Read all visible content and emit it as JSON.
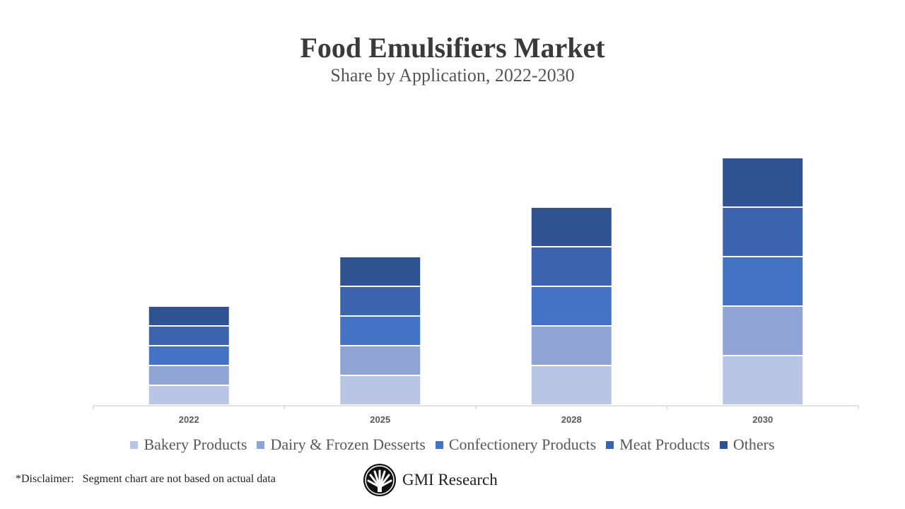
{
  "chart_data": {
    "type": "bar",
    "stacked": true,
    "title": "Food Emulsifiers Market",
    "subtitle": "Share by Application, 2022-2030",
    "categories": [
      "2022",
      "2025",
      "2028",
      "2030"
    ],
    "series": [
      {
        "name": "Bakery Products",
        "color": "#BAC5E3",
        "values": [
          2,
          3,
          4,
          5
        ]
      },
      {
        "name": "Dairy & Frozen Desserts",
        "color": "#8FA4D4",
        "values": [
          2,
          3,
          4,
          5
        ]
      },
      {
        "name": "Confectionery Products",
        "color": "#4472C4",
        "values": [
          2,
          3,
          4,
          5
        ]
      },
      {
        "name": "Meat Products",
        "color": "#3A64AC",
        "values": [
          2,
          3,
          4,
          5
        ]
      },
      {
        "name": "Others",
        "color": "#2F5291",
        "values": [
          2,
          3,
          4,
          5
        ]
      }
    ],
    "ylim": [
      0,
      26
    ],
    "grid": false,
    "y_axis_labels": false,
    "legend": "bottom"
  },
  "footer": {
    "disclaimer": "*Disclaimer:   Segment chart are not based on actual data",
    "brand": "GMI Research"
  }
}
